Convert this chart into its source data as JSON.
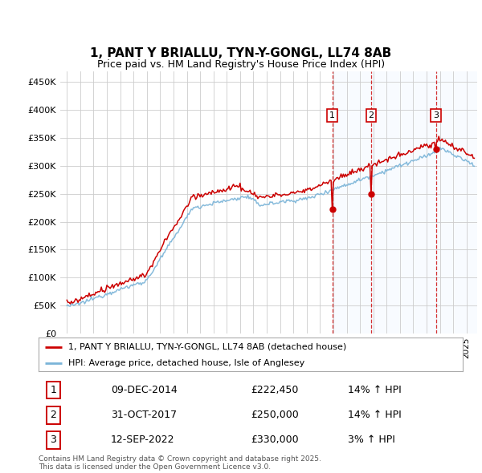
{
  "title": "1, PANT Y BRIALLU, TYN-Y-GONGL, LL74 8AB",
  "subtitle": "Price paid vs. HM Land Registry's House Price Index (HPI)",
  "legend_line1": "1, PANT Y BRIALLU, TYN-Y-GONGL, LL74 8AB (detached house)",
  "legend_line2": "HPI: Average price, detached house, Isle of Anglesey",
  "footer1": "Contains HM Land Registry data © Crown copyright and database right 2025.",
  "footer2": "This data is licensed under the Open Government Licence v3.0.",
  "transactions": [
    {
      "num": 1,
      "date": "09-DEC-2014",
      "price": "£222,450",
      "hpi": "14% ↑ HPI",
      "year": 2014.92
    },
    {
      "num": 2,
      "date": "31-OCT-2017",
      "price": "£250,000",
      "hpi": "14% ↑ HPI",
      "year": 2017.83
    },
    {
      "num": 3,
      "date": "12-SEP-2022",
      "price": "£330,000",
      "hpi": "3% ↑ HPI",
      "year": 2022.7
    }
  ],
  "y_ticks": [
    0,
    50000,
    100000,
    150000,
    200000,
    250000,
    300000,
    350000,
    400000,
    450000
  ],
  "y_labels": [
    "£0",
    "£50K",
    "£100K",
    "£150K",
    "£200K",
    "£250K",
    "£300K",
    "£350K",
    "£400K",
    "£450K"
  ],
  "ylim": [
    0,
    470000
  ],
  "xlim_left": 1994.5,
  "xlim_right": 2025.8,
  "hpi_color": "#7ab4d8",
  "price_color": "#cc0000",
  "background_color": "#ffffff",
  "grid_color": "#cccccc",
  "shade_color": "#ddeeff",
  "transaction_box_color": "#cc0000",
  "title_fontsize": 11,
  "subtitle_fontsize": 9,
  "tick_fontsize": 8,
  "legend_fontsize": 8,
  "table_fontsize": 9,
  "footer_fontsize": 6.5
}
